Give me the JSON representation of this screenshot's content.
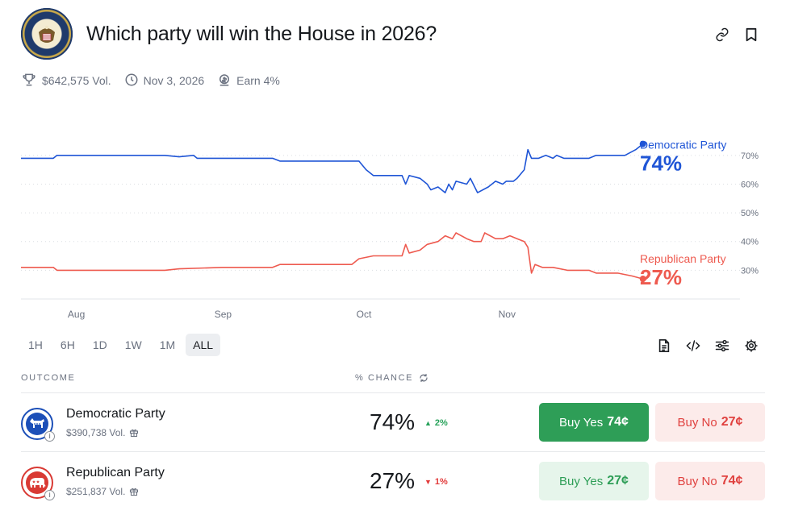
{
  "market": {
    "title": "Which party will win the House in 2026?",
    "volume": "$642,575 Vol.",
    "end_date": "Nov 3, 2026",
    "earn": "Earn 4%"
  },
  "icons": {
    "logo": "house-seal-icon",
    "link": "link-icon",
    "bookmark": "bookmark-icon",
    "trophy": "trophy-icon",
    "clock": "clock-icon",
    "earn": "earn-icon",
    "document": "document-icon",
    "embed": "code-icon",
    "settings_sliders": "sliders-icon",
    "settings": "gear-icon",
    "refresh": "refresh-icon",
    "gift": "gift-icon"
  },
  "chart_data": {
    "type": "line",
    "x_ticks": [
      "Aug",
      "Sep",
      "Oct",
      "Nov"
    ],
    "y_ticks": [
      "70%",
      "60%",
      "50%",
      "40%",
      "30%"
    ],
    "ylim": [
      20,
      75
    ],
    "grid": true,
    "series": [
      {
        "name": "Democratic Party",
        "current": "74%",
        "color": "#1f55d6",
        "values": [
          [
            0,
            69
          ],
          [
            0.045,
            69
          ],
          [
            0.05,
            70
          ],
          [
            0.1,
            70
          ],
          [
            0.2,
            70
          ],
          [
            0.22,
            69.5
          ],
          [
            0.24,
            70
          ],
          [
            0.245,
            69
          ],
          [
            0.35,
            69
          ],
          [
            0.36,
            68
          ],
          [
            0.47,
            68
          ],
          [
            0.48,
            65
          ],
          [
            0.49,
            63
          ],
          [
            0.53,
            63
          ],
          [
            0.535,
            60
          ],
          [
            0.54,
            63
          ],
          [
            0.555,
            62
          ],
          [
            0.565,
            60
          ],
          [
            0.57,
            58
          ],
          [
            0.58,
            59
          ],
          [
            0.59,
            57
          ],
          [
            0.595,
            60
          ],
          [
            0.6,
            58
          ],
          [
            0.605,
            61
          ],
          [
            0.62,
            60
          ],
          [
            0.625,
            62
          ],
          [
            0.635,
            57
          ],
          [
            0.65,
            59
          ],
          [
            0.66,
            61
          ],
          [
            0.67,
            60
          ],
          [
            0.675,
            61
          ],
          [
            0.685,
            61
          ],
          [
            0.69,
            62
          ],
          [
            0.7,
            65
          ],
          [
            0.705,
            72
          ],
          [
            0.71,
            69
          ],
          [
            0.72,
            69
          ],
          [
            0.73,
            70
          ],
          [
            0.74,
            69
          ],
          [
            0.745,
            70
          ],
          [
            0.755,
            69
          ],
          [
            0.79,
            69
          ],
          [
            0.8,
            70
          ],
          [
            0.84,
            70
          ],
          [
            0.855,
            72
          ],
          [
            0.865,
            74
          ]
        ]
      },
      {
        "name": "Republican Party",
        "current": "27%",
        "color": "#ee5a4f",
        "values": [
          [
            0,
            31
          ],
          [
            0.045,
            31
          ],
          [
            0.05,
            30
          ],
          [
            0.2,
            30
          ],
          [
            0.22,
            30.5
          ],
          [
            0.28,
            31
          ],
          [
            0.35,
            31
          ],
          [
            0.36,
            32
          ],
          [
            0.46,
            32
          ],
          [
            0.47,
            34
          ],
          [
            0.49,
            35
          ],
          [
            0.53,
            35
          ],
          [
            0.535,
            39
          ],
          [
            0.54,
            36
          ],
          [
            0.555,
            37
          ],
          [
            0.565,
            39
          ],
          [
            0.58,
            40
          ],
          [
            0.59,
            42
          ],
          [
            0.6,
            41
          ],
          [
            0.605,
            43
          ],
          [
            0.62,
            41
          ],
          [
            0.63,
            40
          ],
          [
            0.64,
            40
          ],
          [
            0.645,
            43
          ],
          [
            0.66,
            41
          ],
          [
            0.67,
            41
          ],
          [
            0.68,
            42
          ],
          [
            0.69,
            41
          ],
          [
            0.7,
            40
          ],
          [
            0.705,
            38
          ],
          [
            0.71,
            29
          ],
          [
            0.715,
            32
          ],
          [
            0.725,
            31
          ],
          [
            0.74,
            31
          ],
          [
            0.76,
            30
          ],
          [
            0.79,
            30
          ],
          [
            0.8,
            29
          ],
          [
            0.83,
            29
          ],
          [
            0.85,
            28
          ],
          [
            0.865,
            27
          ]
        ]
      }
    ]
  },
  "time_ranges": [
    "1H",
    "6H",
    "1D",
    "1W",
    "1M",
    "ALL"
  ],
  "columns": {
    "outcome": "OUTCOME",
    "chance": "% CHANCE"
  },
  "outcomes": [
    {
      "name": "Democratic Party",
      "volume": "$390,738 Vol.",
      "chance": "74%",
      "change": "2%",
      "change_dir": "up",
      "yes_label": "Buy Yes",
      "yes_price": "74¢",
      "no_label": "Buy No",
      "no_price": "27¢",
      "icon": "donkey-icon"
    },
    {
      "name": "Republican Party",
      "volume": "$251,837 Vol.",
      "chance": "27%",
      "change": "1%",
      "change_dir": "down",
      "yes_label": "Buy Yes",
      "yes_price": "27¢",
      "no_label": "Buy No",
      "no_price": "74¢",
      "icon": "elephant-icon"
    }
  ],
  "info_glyph": "i"
}
